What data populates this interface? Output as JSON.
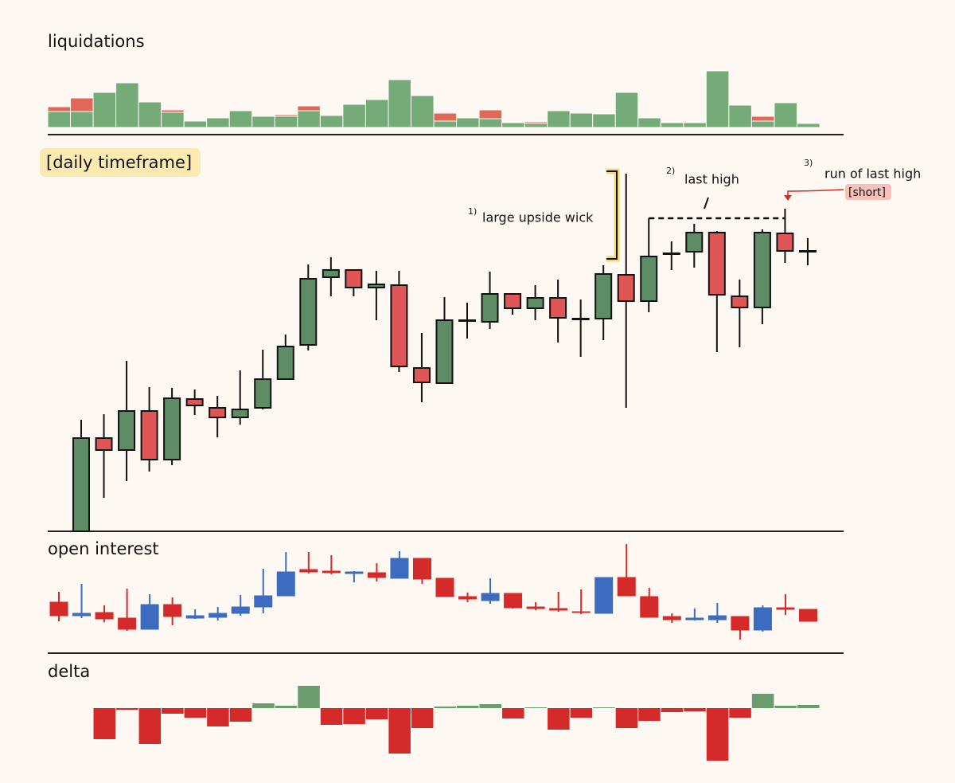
{
  "chart_data": [
    {
      "type": "stacked_bar",
      "title": "liquidations",
      "ylim": [
        0,
        75
      ],
      "series": [
        {
          "color": "#75ab78",
          "values": [
            20,
            20,
            44,
            56,
            32,
            19,
            8,
            12,
            21,
            14,
            14,
            21,
            15,
            29,
            35,
            60,
            40,
            8,
            12,
            11,
            6,
            5,
            21,
            18,
            17,
            44,
            12,
            6,
            6,
            71,
            28,
            8,
            31,
            5
          ]
        },
        {
          "color": "#e0685a",
          "values": [
            6,
            17,
            0,
            0,
            0,
            3,
            0,
            0,
            0,
            0,
            2,
            6,
            0,
            0,
            0,
            0,
            0,
            10,
            0,
            11,
            0,
            2,
            0,
            0,
            0,
            0,
            0,
            0,
            0,
            0,
            0,
            6,
            0,
            0
          ]
        }
      ]
    },
    {
      "type": "candlestick",
      "title": "[daily timeframe]",
      "ylim": [
        0,
        482
      ],
      "up_color": "#5e8d65",
      "down_color": "#e05555",
      "open": [
        0,
        117,
        102,
        151,
        90,
        166,
        155,
        143,
        155,
        191,
        234,
        319,
        328,
        306,
        309,
        205,
        186,
        264,
        263,
        298,
        280,
        293,
        267,
        267,
        322,
        289,
        348,
        351,
        375,
        295,
        281,
        374,
        352
      ],
      "high": [
        140,
        147,
        214,
        181,
        180,
        178,
        170,
        202,
        228,
        247,
        335,
        344,
        328,
        327,
        327,
        249,
        294,
        287,
        326,
        298,
        309,
        316,
        291,
        334,
        449,
        393,
        364,
        386,
        377,
        316,
        379,
        405,
        368
      ],
      "low": [
        0,
        42,
        63,
        75,
        83,
        146,
        118,
        134,
        153,
        191,
        227,
        295,
        295,
        265,
        200,
        162,
        186,
        242,
        254,
        272,
        265,
        237,
        219,
        240,
        155,
        275,
        328,
        331,
        225,
        231,
        260,
        337,
        334
      ],
      "close": [
        117,
        102,
        151,
        90,
        167,
        158,
        143,
        153,
        191,
        232,
        317,
        328,
        306,
        310,
        207,
        187,
        265,
        265,
        298,
        280,
        293,
        268,
        266,
        323,
        289,
        345,
        349,
        375,
        297,
        281,
        375,
        352,
        351
      ],
      "annotations": [
        "1)",
        "large upside wick",
        "2)",
        "last high",
        "3)",
        "run of last high",
        "[short]"
      ]
    },
    {
      "type": "candlestick",
      "title": "open interest",
      "ylim": [
        0,
        135
      ],
      "up_color": "#3d6bbf",
      "down_color": "#d42a2a",
      "open": [
        59,
        42,
        46,
        39,
        25,
        56,
        39,
        40,
        45,
        53,
        67,
        100,
        98,
        95,
        96,
        89,
        114,
        89,
        66,
        61,
        70,
        53,
        51,
        47,
        45,
        90,
        66,
        41,
        37,
        37,
        41,
        24,
        52,
        50
      ],
      "high": [
        72,
        82,
        55,
        76,
        69,
        65,
        50,
        53,
        68,
        101,
        122,
        122,
        118,
        98,
        108,
        123,
        114,
        89,
        71,
        89,
        70,
        59,
        72,
        75,
        90,
        132,
        77,
        45,
        51,
        58,
        41,
        55,
        69,
        50
      ],
      "low": [
        35,
        39,
        34,
        23,
        25,
        30,
        38,
        36,
        42,
        45,
        67,
        95,
        94,
        84,
        85,
        89,
        82,
        66,
        59,
        57,
        51,
        49,
        47,
        44,
        45,
        67,
        40,
        33,
        36,
        33,
        12,
        22,
        43,
        35
      ],
      "close": [
        42,
        45,
        38,
        25,
        56,
        41,
        42,
        45,
        53,
        67,
        97,
        97,
        96,
        97,
        90,
        114,
        88,
        66,
        63,
        70,
        52,
        51,
        49,
        46,
        90,
        67,
        40,
        37,
        39,
        42,
        24,
        52,
        50,
        35
      ]
    },
    {
      "type": "bar",
      "title": "delta",
      "ylim": [
        -70,
        30
      ],
      "positive_color": "#6b9c6e",
      "negative_color": "#d42a2a",
      "values": [
        -39,
        -2,
        -45,
        -7,
        -12,
        -23,
        -17,
        6,
        3,
        28,
        -21,
        -20,
        -14,
        -57,
        -25,
        2,
        3,
        5,
        -13,
        1,
        -27,
        -12,
        1,
        -25,
        -16,
        -5,
        -4,
        -66,
        -12,
        18,
        3,
        4
      ]
    }
  ]
}
